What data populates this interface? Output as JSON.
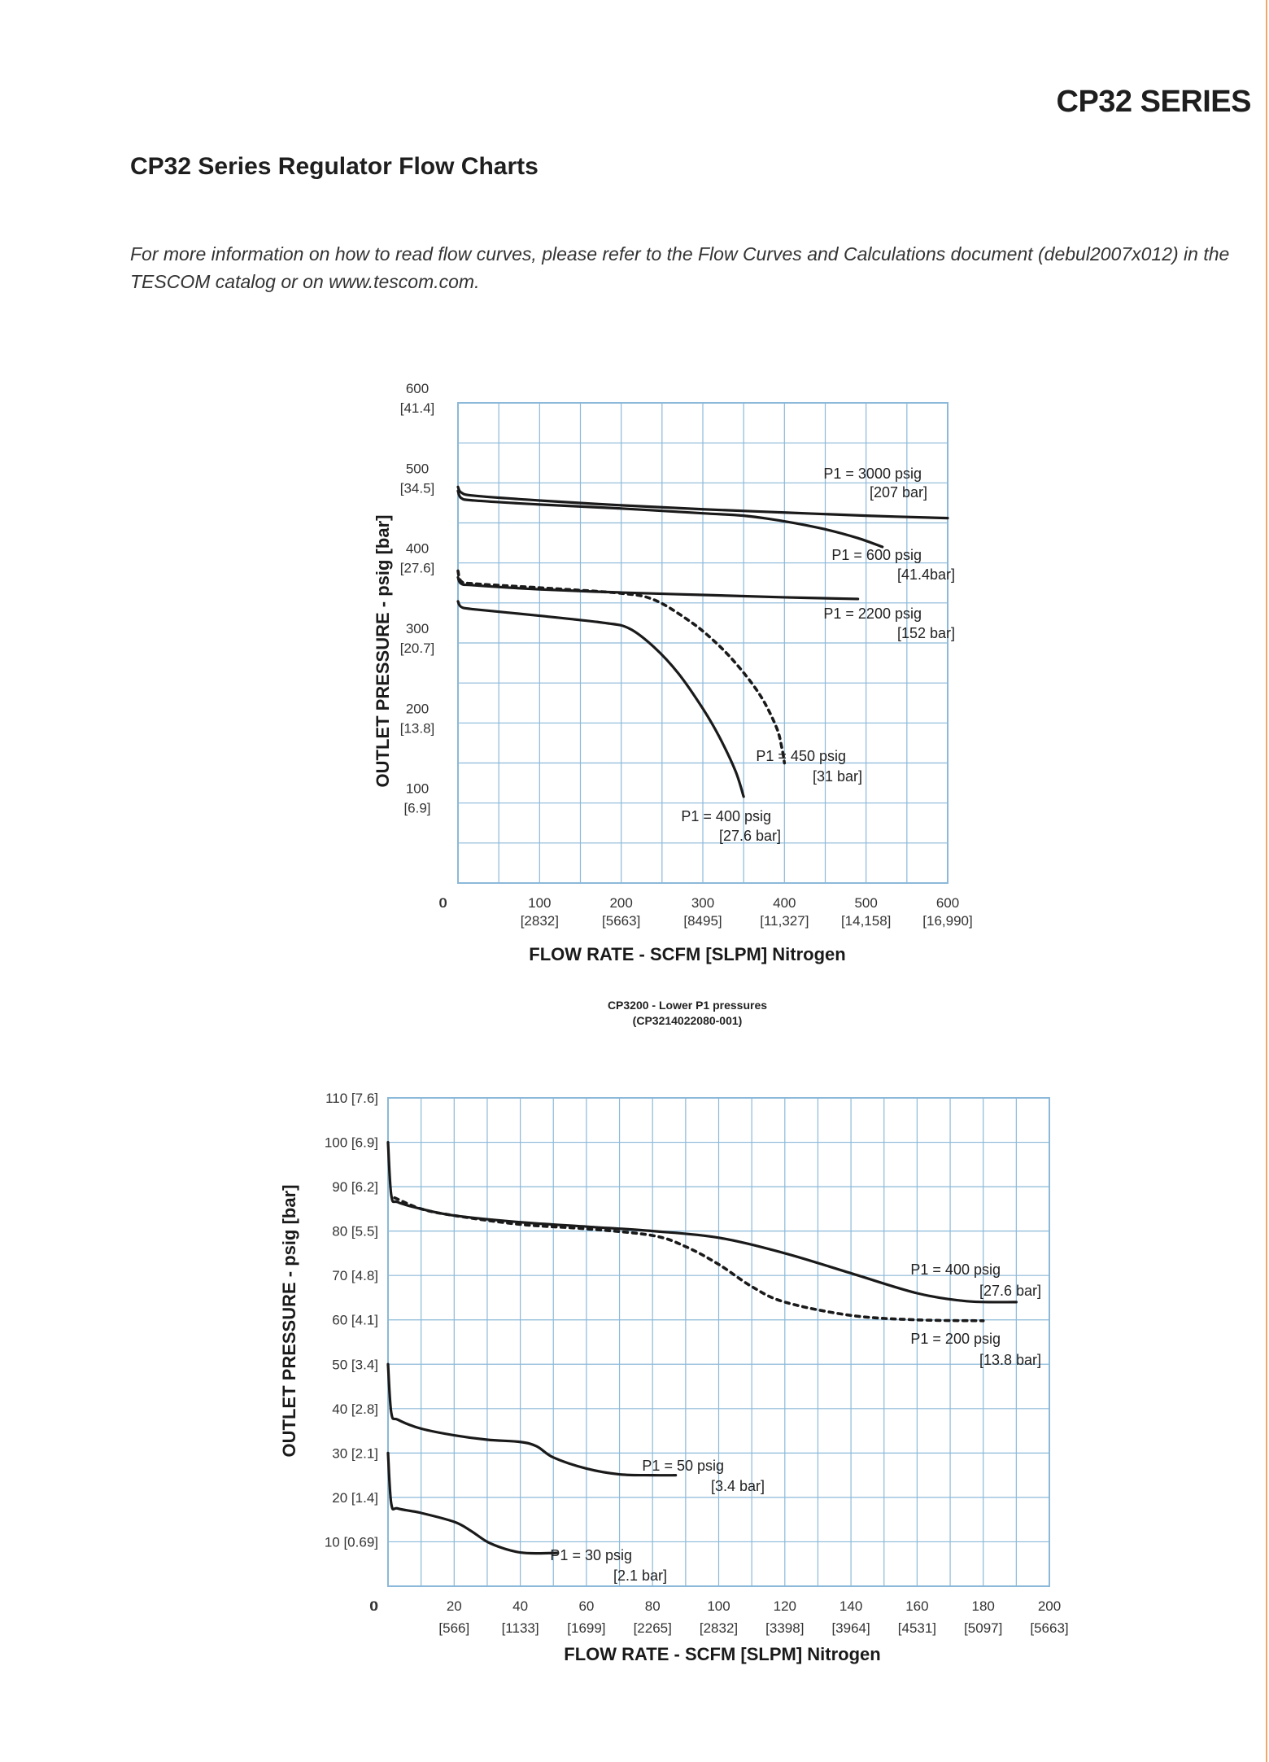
{
  "header": {
    "series_title": "CP32 SERIES",
    "page_title": "CP32 Series Regulator Flow Charts",
    "intro": "For more information on how to read flow curves, please refer to the Flow Curves and Calculations document (debul2007x012) in the TESCOM catalog or on www.tescom.com."
  },
  "colors": {
    "grid": "#8cb9d9",
    "curve": "#1a1a1a",
    "accent_rule": "#f0a868"
  },
  "chart_data": [
    {
      "type": "line",
      "title": "",
      "xlabel": "FLOW RATE - SCFM [SLPM] Nitrogen",
      "ylabel": "OUTLET PRESSURE - psig [bar]",
      "xlim": [
        0,
        600
      ],
      "ylim": [
        0,
        600
      ],
      "grid": true,
      "x_ticks": [
        {
          "value": 0,
          "label": "0",
          "sub": ""
        },
        {
          "value": 100,
          "label": "100",
          "sub": "[2832]"
        },
        {
          "value": 200,
          "label": "200",
          "sub": "[5663]"
        },
        {
          "value": 300,
          "label": "300",
          "sub": "[8495]"
        },
        {
          "value": 400,
          "label": "400",
          "sub": "[11,327]"
        },
        {
          "value": 500,
          "label": "500",
          "sub": "[14,158]"
        },
        {
          "value": 600,
          "label": "600",
          "sub": "[16,990]"
        }
      ],
      "y_ticks": [
        {
          "value": 0,
          "label": "0",
          "sub": ""
        },
        {
          "value": 100,
          "label": "100",
          "sub": "[6.9]"
        },
        {
          "value": 200,
          "label": "200",
          "sub": "[13.8]"
        },
        {
          "value": 300,
          "label": "300",
          "sub": "[20.7]"
        },
        {
          "value": 400,
          "label": "400",
          "sub": "[27.6]"
        },
        {
          "value": 500,
          "label": "500",
          "sub": "[34.5]"
        },
        {
          "value": 600,
          "label": "600",
          "sub": "[41.4]"
        }
      ],
      "series": [
        {
          "name": "P1 = 3000 psig",
          "sub": "[207 bar]",
          "style": "solid",
          "points": [
            [
              0,
              495
            ],
            [
              4,
              488
            ],
            [
              20,
              484
            ],
            [
              100,
              478
            ],
            [
              200,
              472
            ],
            [
              300,
              467
            ],
            [
              400,
              463
            ],
            [
              500,
              459
            ],
            [
              600,
              456
            ]
          ]
        },
        {
          "name": "P1 = 600 psig",
          "sub": "[41.4bar]",
          "style": "solid",
          "points": [
            [
              0,
              490
            ],
            [
              4,
              481
            ],
            [
              20,
              478
            ],
            [
              100,
              473
            ],
            [
              200,
              468
            ],
            [
              300,
              462
            ],
            [
              350,
              459
            ],
            [
              400,
              452
            ],
            [
              450,
              442
            ],
            [
              490,
              431
            ],
            [
              520,
              420
            ]
          ]
        },
        {
          "name": "P1 = 2200 psig",
          "sub": "[152 bar]",
          "style": "solid",
          "points": [
            [
              0,
              382
            ],
            [
              4,
              374
            ],
            [
              20,
              372
            ],
            [
              100,
              367
            ],
            [
              200,
              363
            ],
            [
              300,
              360
            ],
            [
              400,
              357
            ],
            [
              490,
              355
            ]
          ]
        },
        {
          "name": "P1 = 450 psig",
          "sub": "[31 bar]",
          "style": "dashed",
          "points": [
            [
              0,
              390
            ],
            [
              4,
              377
            ],
            [
              20,
              374
            ],
            [
              100,
              369
            ],
            [
              200,
              362
            ],
            [
              240,
              354
            ],
            [
              280,
              330
            ],
            [
              310,
              306
            ],
            [
              340,
              275
            ],
            [
              370,
              235
            ],
            [
              390,
              195
            ],
            [
              397,
              168
            ],
            [
              400,
              150
            ]
          ]
        },
        {
          "name": "P1 = 400 psig",
          "sub": "[27.6 bar]",
          "style": "solid",
          "points": [
            [
              0,
              352
            ],
            [
              4,
              345
            ],
            [
              20,
              342
            ],
            [
              100,
              334
            ],
            [
              180,
              325
            ],
            [
              210,
              318
            ],
            [
              240,
              295
            ],
            [
              270,
              262
            ],
            [
              300,
              218
            ],
            [
              320,
              183
            ],
            [
              340,
              140
            ],
            [
              350,
              108
            ]
          ]
        }
      ]
    },
    {
      "type": "line",
      "title": "CP3200 - Lower P1 pressures",
      "subtitle": "(CP3214022080-001)",
      "xlabel": "FLOW RATE - SCFM [SLPM] Nitrogen",
      "ylabel": "OUTLET PRESSURE - psig [bar]",
      "xlim": [
        0,
        200
      ],
      "ylim": [
        0,
        110
      ],
      "grid": true,
      "x_ticks": [
        {
          "value": 0,
          "label": "0",
          "sub": ""
        },
        {
          "value": 20,
          "label": "20",
          "sub": "[566]"
        },
        {
          "value": 40,
          "label": "40",
          "sub": "[1133]"
        },
        {
          "value": 60,
          "label": "60",
          "sub": "[1699]"
        },
        {
          "value": 80,
          "label": "80",
          "sub": "[2265]"
        },
        {
          "value": 100,
          "label": "100",
          "sub": "[2832]"
        },
        {
          "value": 120,
          "label": "120",
          "sub": "[3398]"
        },
        {
          "value": 140,
          "label": "140",
          "sub": "[3964]"
        },
        {
          "value": 160,
          "label": "160",
          "sub": "[4531]"
        },
        {
          "value": 180,
          "label": "180",
          "sub": "[5097]"
        },
        {
          "value": 200,
          "label": "200",
          "sub": "[5663]"
        }
      ],
      "y_ticks": [
        {
          "value": 10,
          "label": "10 [0.69]"
        },
        {
          "value": 20,
          "label": "20 [1.4]"
        },
        {
          "value": 30,
          "label": "30 [2.1]"
        },
        {
          "value": 40,
          "label": "40 [2.8]"
        },
        {
          "value": 50,
          "label": "50 [3.4]"
        },
        {
          "value": 60,
          "label": "60 [4.1]"
        },
        {
          "value": 70,
          "label": "70 [4.8]"
        },
        {
          "value": 80,
          "label": "80 [5.5]"
        },
        {
          "value": 90,
          "label": "90 [6.2]"
        },
        {
          "value": 100,
          "label": "100 [6.9]"
        },
        {
          "value": 110,
          "label": "110 [7.6]"
        }
      ],
      "series": [
        {
          "name": "P1 = 400 psig",
          "sub": "[27.6 bar]",
          "style": "solid",
          "points": [
            [
              0,
              100
            ],
            [
              1,
              88
            ],
            [
              3,
              86.5
            ],
            [
              10,
              85
            ],
            [
              20,
              83.5
            ],
            [
              40,
              82
            ],
            [
              60,
              81
            ],
            [
              80,
              80
            ],
            [
              100,
              78.5
            ],
            [
              120,
              75
            ],
            [
              140,
              70.5
            ],
            [
              160,
              66
            ],
            [
              175,
              64.2
            ],
            [
              190,
              64
            ]
          ]
        },
        {
          "name": "P1 = 200 psig",
          "sub": "[13.8 bar]",
          "style": "dashed",
          "points": [
            [
              2,
              87.5
            ],
            [
              10,
              85
            ],
            [
              20,
              83.5
            ],
            [
              40,
              81.5
            ],
            [
              60,
              80.5
            ],
            [
              80,
              79
            ],
            [
              90,
              76.5
            ],
            [
              100,
              72.5
            ],
            [
              110,
              67.5
            ],
            [
              120,
              64
            ],
            [
              140,
              61
            ],
            [
              160,
              60
            ],
            [
              180,
              59.8
            ]
          ]
        },
        {
          "name": "P1 = 50 psig",
          "sub": "[3.4 bar]",
          "style": "solid",
          "points": [
            [
              0,
              50
            ],
            [
              1,
              39
            ],
            [
              3,
              37.5
            ],
            [
              10,
              35.5
            ],
            [
              20,
              34
            ],
            [
              30,
              33
            ],
            [
              40,
              32.5
            ],
            [
              45,
              31.5
            ],
            [
              50,
              29
            ],
            [
              60,
              26.5
            ],
            [
              70,
              25.2
            ],
            [
              80,
              25
            ],
            [
              87,
              25
            ]
          ]
        },
        {
          "name": "P1 = 30 psig",
          "sub": "[2.1 bar]",
          "style": "solid",
          "points": [
            [
              0,
              30
            ],
            [
              1,
              18.5
            ],
            [
              3,
              17.5
            ],
            [
              10,
              16.5
            ],
            [
              20,
              14.5
            ],
            [
              25,
              12.5
            ],
            [
              30,
              10
            ],
            [
              35,
              8.5
            ],
            [
              40,
              7.6
            ],
            [
              45,
              7.4
            ],
            [
              51,
              7.5
            ]
          ]
        }
      ]
    }
  ]
}
